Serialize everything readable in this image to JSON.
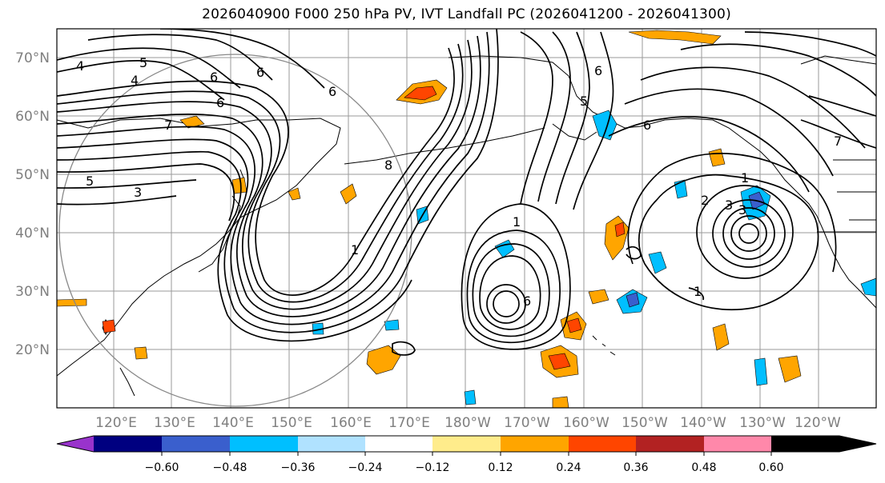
{
  "title": "2026040900 F000 250 hPa PV, IVT Landfall PC (2026041200 - 2026041300)",
  "map": {
    "lat_labels": [
      "70°N",
      "60°N",
      "50°N",
      "40°N",
      "30°N",
      "20°N"
    ],
    "lon_labels": [
      "120°E",
      "130°E",
      "140°E",
      "150°E",
      "160°E",
      "170°E",
      "180°W",
      "170°W",
      "160°W",
      "150°W",
      "140°W",
      "130°W",
      "120°W"
    ],
    "contour_labels": [
      "4",
      "5",
      "4",
      "6",
      "6",
      "7",
      "6",
      "6",
      "3",
      "5",
      "8",
      "1",
      "1",
      "1",
      "3",
      "1",
      "2",
      "3",
      "6",
      "6",
      "6",
      "5",
      "7"
    ]
  },
  "colorbar": {
    "tick_labels": [
      "−0.60",
      "−0.48",
      "−0.36",
      "−0.24",
      "−0.12",
      "0.12",
      "0.24",
      "0.36",
      "0.48",
      "0.60"
    ],
    "colors": [
      "#9933cc",
      "#000080",
      "#3a5fcd",
      "#00bfff",
      "#b0e2ff",
      "#ffffff",
      "#ffec8b",
      "#ffa500",
      "#ff4500",
      "#b22222",
      "#ff88aa"
    ]
  }
}
